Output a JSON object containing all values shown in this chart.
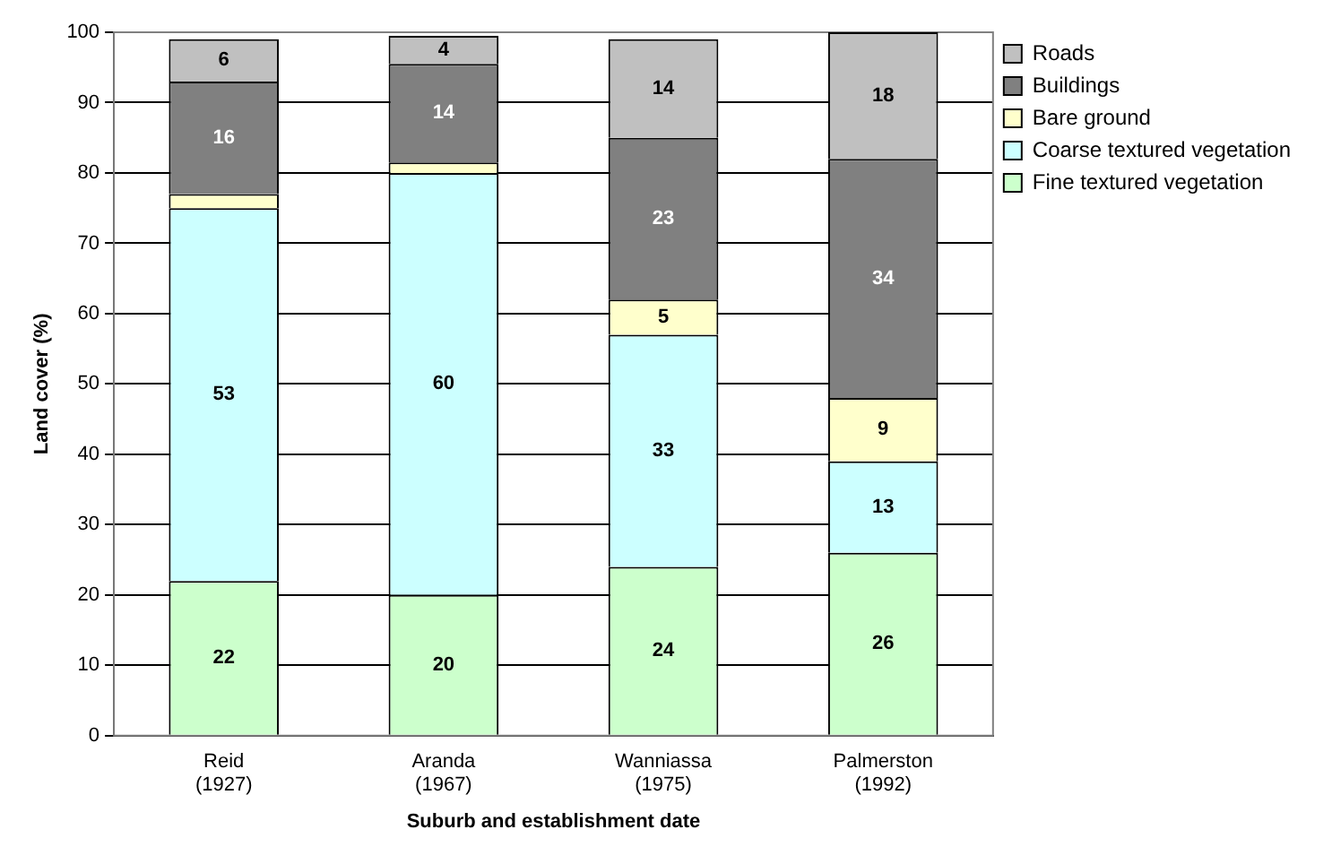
{
  "chart_data": {
    "type": "bar",
    "stacked": true,
    "xlabel": "Suburb and establishment date",
    "ylabel": "Land cover (%)",
    "categories": [
      "Reid\n(1927)",
      "Aranda\n(1967)",
      "Wanniassa\n(1975)",
      "Palmerston\n(1992)"
    ],
    "ylim": [
      0,
      100
    ],
    "yticks": [
      0,
      10,
      20,
      30,
      40,
      50,
      60,
      70,
      80,
      90,
      100
    ],
    "grid": "y",
    "legend": "right",
    "series": [
      {
        "name": "Fine textured vegetation",
        "color": "#ccffcc",
        "values": [
          22,
          20,
          24,
          26
        ],
        "value_labels": [
          "22",
          "20",
          "24",
          "26"
        ]
      },
      {
        "name": "Coarse textured vegetation",
        "color": "#ccffff",
        "values": [
          53,
          60,
          33,
          13
        ],
        "value_labels": [
          "53",
          "60",
          "33",
          "13"
        ]
      },
      {
        "name": "Bare ground",
        "color": "#ffffcc",
        "values": [
          2,
          1.5,
          5,
          9
        ],
        "value_labels": [
          null,
          null,
          "5",
          "9"
        ]
      },
      {
        "name": "Buildings",
        "color": "#808080",
        "values": [
          16,
          14,
          23,
          34
        ],
        "value_labels": [
          "16",
          "14",
          "23",
          "34"
        ]
      },
      {
        "name": "Roads",
        "color": "#c0c0c0",
        "values": [
          6,
          4,
          14,
          18
        ],
        "value_labels": [
          "6",
          "4",
          "14",
          "18"
        ]
      }
    ]
  }
}
